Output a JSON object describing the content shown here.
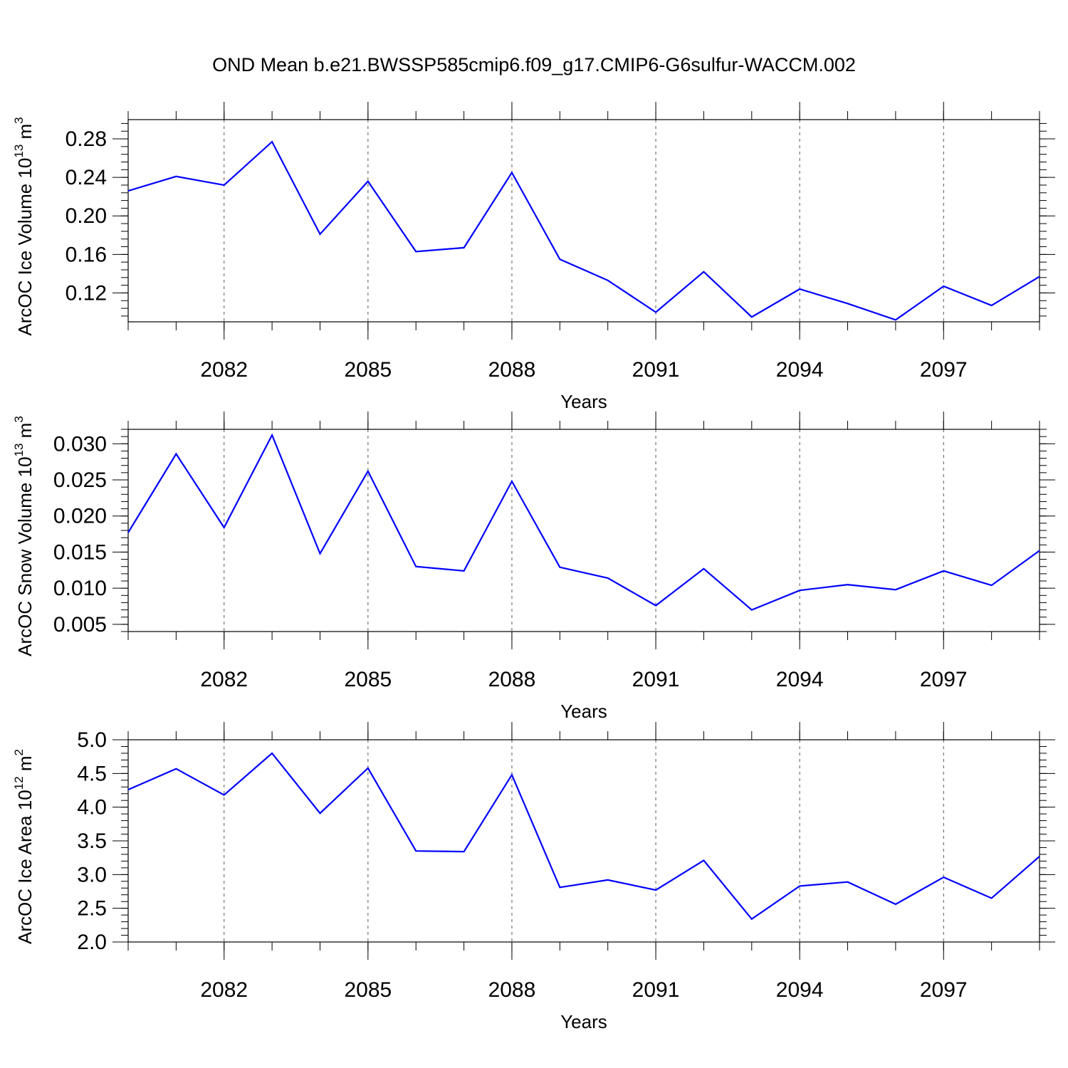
{
  "title": "OND Mean b.e21.BWSSP585cmip6.f09_g17.CMIP6-G6sulfur-WACCM.002",
  "line_color": "#0000ff",
  "chart_data": [
    {
      "type": "line",
      "title": "OND Mean b.e21.BWSSP585cmip6.f09_g17.CMIP6-G6sulfur-WACCM.002",
      "ylabel": "ArcOC Ice Volume 10",
      "ylabel_exp": "13",
      "ylabel_unit": " m",
      "ylabel_unit_exp": "3",
      "xlabel": "Years",
      "xlim": [
        2080,
        2099
      ],
      "ylim": [
        0.09,
        0.3
      ],
      "xticks": [
        2082,
        2085,
        2088,
        2091,
        2094,
        2097
      ],
      "xtick_labels": [
        "2082",
        "2085",
        "2088",
        "2091",
        "2094",
        "2097"
      ],
      "yticks": [
        0.12,
        0.16,
        0.2,
        0.24,
        0.28
      ],
      "ytick_labels": [
        "0.12",
        "0.16",
        "0.20",
        "0.24",
        "0.28"
      ],
      "x": [
        2080,
        2081,
        2082,
        2083,
        2084,
        2085,
        2086,
        2087,
        2088,
        2089,
        2090,
        2091,
        2092,
        2093,
        2094,
        2095,
        2096,
        2097,
        2098,
        2099
      ],
      "values": [
        0.226,
        0.241,
        0.232,
        0.277,
        0.181,
        0.236,
        0.163,
        0.167,
        0.245,
        0.155,
        0.133,
        0.1,
        0.142,
        0.095,
        0.124,
        0.109,
        0.092,
        0.127,
        0.107,
        0.137
      ]
    },
    {
      "type": "line",
      "ylabel": "ArcOC Snow Volume 10",
      "ylabel_exp": "13",
      "ylabel_unit": " m",
      "ylabel_unit_exp": "3",
      "xlabel": "Years",
      "xlim": [
        2080,
        2099
      ],
      "ylim": [
        0.004,
        0.032
      ],
      "xticks": [
        2082,
        2085,
        2088,
        2091,
        2094,
        2097
      ],
      "xtick_labels": [
        "2082",
        "2085",
        "2088",
        "2091",
        "2094",
        "2097"
      ],
      "yticks": [
        0.005,
        0.01,
        0.015,
        0.02,
        0.025,
        0.03
      ],
      "ytick_labels": [
        "0.005",
        "0.010",
        "0.015",
        "0.020",
        "0.025",
        "0.030"
      ],
      "x": [
        2080,
        2081,
        2082,
        2083,
        2084,
        2085,
        2086,
        2087,
        2088,
        2089,
        2090,
        2091,
        2092,
        2093,
        2094,
        2095,
        2096,
        2097,
        2098,
        2099
      ],
      "values": [
        0.0177,
        0.0286,
        0.0184,
        0.0312,
        0.0148,
        0.0262,
        0.013,
        0.0124,
        0.0248,
        0.0129,
        0.0114,
        0.0076,
        0.0127,
        0.007,
        0.0097,
        0.0105,
        0.0098,
        0.0124,
        0.0104,
        0.0152
      ]
    },
    {
      "type": "line",
      "ylabel": "ArcOC Ice Area 10",
      "ylabel_exp": "12",
      "ylabel_unit": " m",
      "ylabel_unit_exp": "2",
      "xlabel": "Years",
      "xlim": [
        2080,
        2099
      ],
      "ylim": [
        2.0,
        5.0
      ],
      "xticks": [
        2082,
        2085,
        2088,
        2091,
        2094,
        2097
      ],
      "xtick_labels": [
        "2082",
        "2085",
        "2088",
        "2091",
        "2094",
        "2097"
      ],
      "yticks": [
        2.0,
        2.5,
        3.0,
        3.5,
        4.0,
        4.5,
        5.0
      ],
      "ytick_labels": [
        "2.0",
        "2.5",
        "3.0",
        "3.5",
        "4.0",
        "4.5",
        "5.0"
      ],
      "x": [
        2080,
        2081,
        2082,
        2083,
        2084,
        2085,
        2086,
        2087,
        2088,
        2089,
        2090,
        2091,
        2092,
        2093,
        2094,
        2095,
        2096,
        2097,
        2098,
        2099
      ],
      "values": [
        4.26,
        4.57,
        4.18,
        4.8,
        3.91,
        4.58,
        3.35,
        3.34,
        4.48,
        2.81,
        2.92,
        2.77,
        3.21,
        2.34,
        2.83,
        2.89,
        2.56,
        2.96,
        2.65,
        3.27
      ]
    }
  ]
}
